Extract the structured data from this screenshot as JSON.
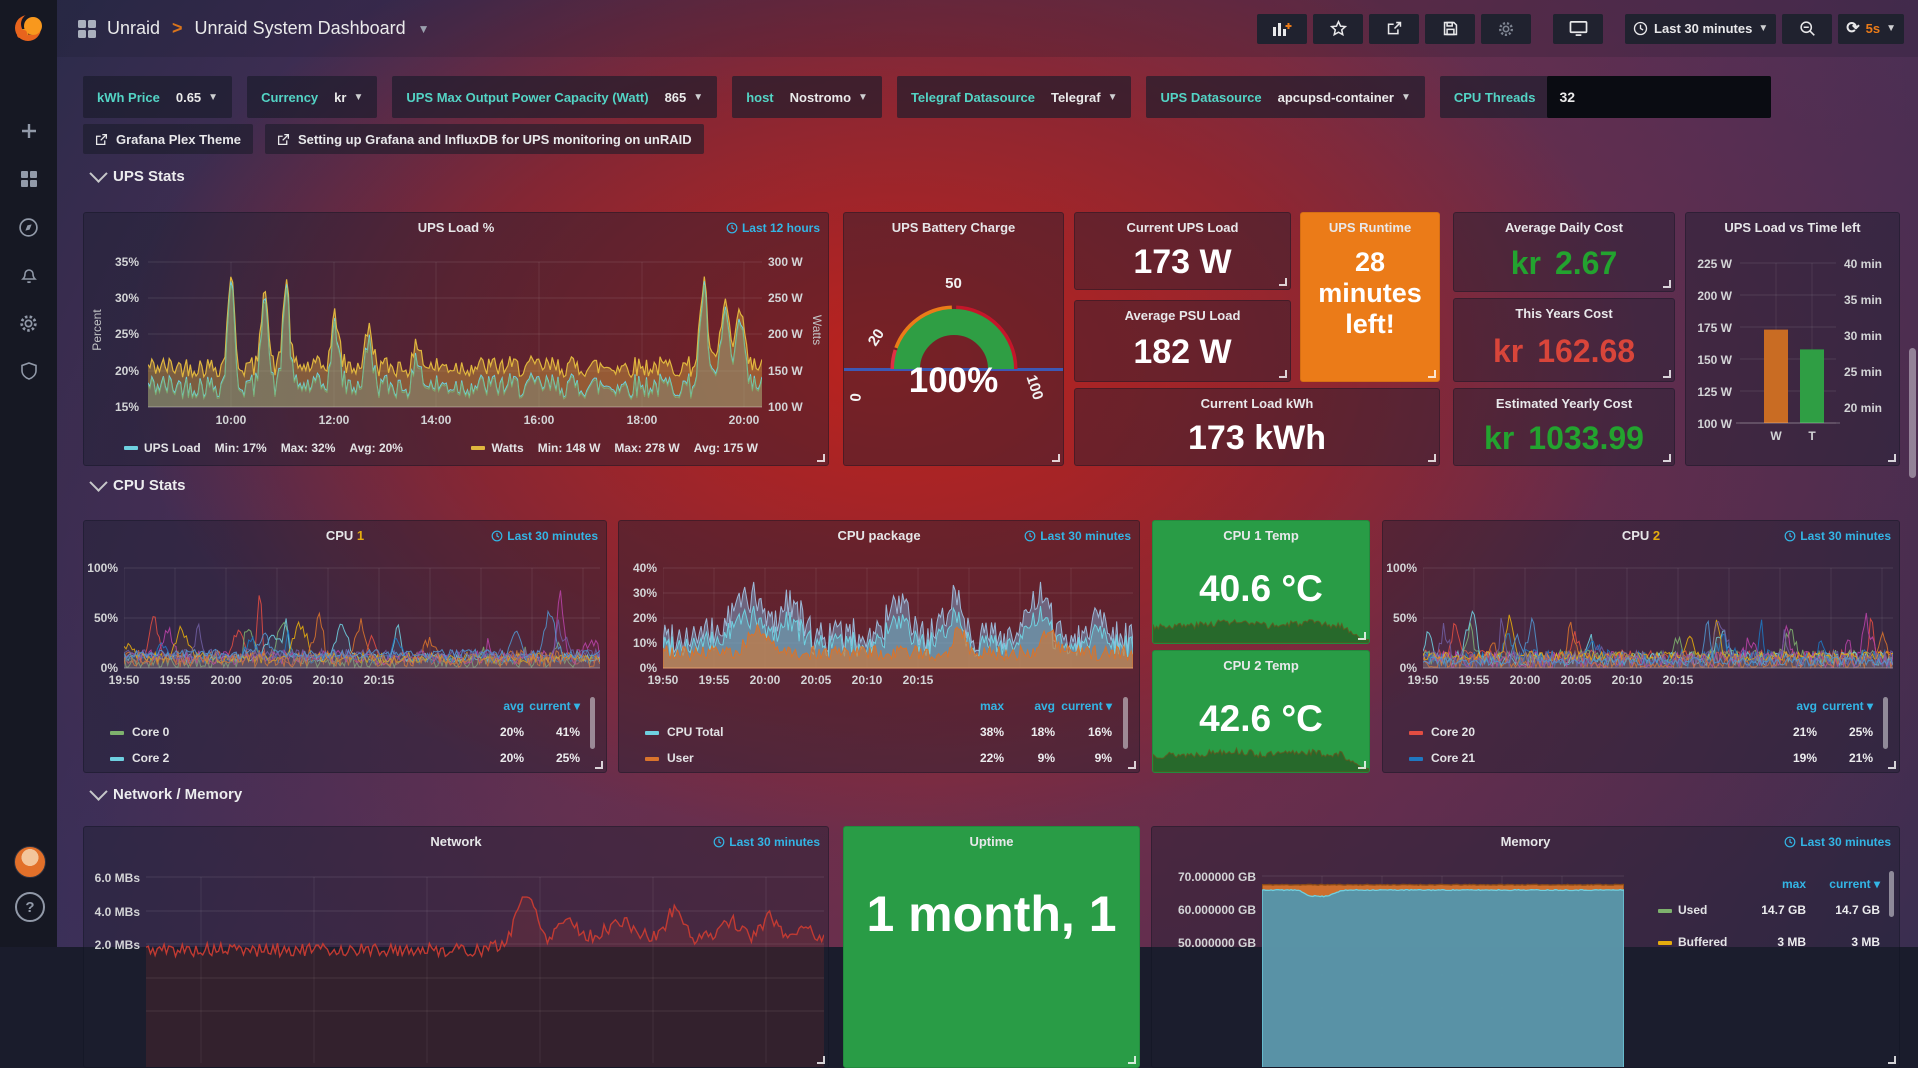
{
  "header": {
    "breadcrumb": [
      "Unraid",
      "Unraid System Dashboard"
    ],
    "time_range": "Last 30 minutes",
    "refresh_interval": "5s",
    "action_icons": [
      "add-panel",
      "star",
      "share",
      "save",
      "settings",
      "tv-kiosk",
      "time-picker",
      "zoom-out",
      "refresh"
    ]
  },
  "sidebar": {
    "icons": [
      "grafana-logo",
      "create-plus",
      "dashboards-grid",
      "explore-compass",
      "alerting-bell",
      "configuration-gear",
      "server-admin-shield",
      "user-avatar",
      "help-question"
    ]
  },
  "variables": [
    {
      "label": "kWh Price",
      "value": "0.65"
    },
    {
      "label": "Currency",
      "value": "kr"
    },
    {
      "label": "UPS Max Output Power Capacity (Watt)",
      "value": "865"
    },
    {
      "label": "host",
      "value": "Nostromo"
    },
    {
      "label": "Telegraf Datasource",
      "value": "Telegraf"
    },
    {
      "label": "UPS Datasource",
      "value": "apcupsd-container"
    },
    {
      "label": "CPU Threads",
      "value": "32"
    }
  ],
  "links": [
    {
      "label": "Grafana Plex Theme"
    },
    {
      "label": "Setting up Grafana and InfluxDB for UPS monitoring on unRAID"
    }
  ],
  "sections": {
    "ups": "UPS Stats",
    "cpu": "CPU Stats",
    "network": "Network / Memory"
  },
  "panels": {
    "ups_load": {
      "title": "UPS Load %",
      "timerange": "Last 12 hours",
      "y_left": {
        "label": "Percent",
        "ticks": [
          "35%",
          "30%",
          "25%",
          "20%",
          "15%"
        ]
      },
      "y_right": {
        "label": "Watts",
        "ticks": [
          "300 W",
          "250 W",
          "200 W",
          "150 W",
          "100 W"
        ]
      },
      "x_ticks": [
        "10:00",
        "12:00",
        "14:00",
        "16:00",
        "18:00",
        "20:00"
      ],
      "series": [
        {
          "name": "UPS Load",
          "color": "#6ed0e0",
          "stats": [
            "Min: 17%",
            "Max: 32%",
            "Avg: 20%"
          ]
        },
        {
          "name": "Watts",
          "color": "#e0b63e",
          "stats": [
            "Min: 148 W",
            "Max: 278 W",
            "Avg: 175 W"
          ]
        }
      ]
    },
    "battery": {
      "title": "UPS Battery Charge",
      "value": "100%",
      "ticks": [
        "0",
        "20",
        "50",
        "100"
      ],
      "threshold_colors": [
        "#e02f44",
        "#eb7b18",
        "#c4162a"
      ],
      "value_color": "#2f9e44"
    },
    "current_ups_load": {
      "title": "Current UPS Load",
      "value": "173 W"
    },
    "average_psu_load": {
      "title": "Average PSU Load",
      "value": "182 W"
    },
    "ups_runtime": {
      "title": "UPS Runtime",
      "value": "28 minutes left!",
      "bg": "#eb7b18"
    },
    "average_daily_cost": {
      "title": "Average Daily Cost",
      "prefix": "kr",
      "value": "2.67",
      "color": "#23a32f"
    },
    "this_years_cost": {
      "title": "This Years Cost",
      "prefix": "kr",
      "value": "162.68",
      "color": "#d9453a"
    },
    "current_load_kwh": {
      "title": "Current Load kWh",
      "value": "173 kWh"
    },
    "estimated_yearly_cost": {
      "title": "Estimated Yearly Cost",
      "prefix": "kr",
      "value": "1033.99",
      "color": "#23a32f"
    },
    "load_vs_time": {
      "title": "UPS Load vs Time left",
      "y_left": [
        "225 W",
        "200 W",
        "175 W",
        "150 W",
        "125 W",
        "100 W"
      ],
      "y_right": [
        "40 min",
        "35 min",
        "30 min",
        "25 min",
        "20 min"
      ],
      "bars": [
        {
          "label": "W",
          "watts": 173,
          "color": "#c96c23"
        },
        {
          "label": "T",
          "minutes": 28,
          "color": "#2f9e44"
        }
      ]
    },
    "cpu1": {
      "title": "CPU ",
      "title_accent": "1",
      "timerange": "Last 30 minutes",
      "y_ticks": [
        "100%",
        "50%",
        "0%"
      ],
      "x_ticks": [
        "19:50",
        "19:55",
        "20:00",
        "20:05",
        "20:10",
        "20:15"
      ],
      "legend": {
        "headers": [
          "avg",
          "current"
        ],
        "rows": [
          {
            "name": "Core 0",
            "color": "#7eb26d",
            "values": [
              "20%",
              "41%"
            ]
          },
          {
            "name": "Core 2",
            "color": "#6ed0e0",
            "values": [
              "20%",
              "25%"
            ]
          }
        ]
      }
    },
    "cpu_package": {
      "title": "CPU package",
      "timerange": "Last 30 minutes",
      "y_ticks": [
        "40%",
        "30%",
        "20%",
        "10%",
        "0%"
      ],
      "x_ticks": [
        "19:50",
        "19:55",
        "20:00",
        "20:05",
        "20:10",
        "20:15"
      ],
      "legend": {
        "headers": [
          "max",
          "avg",
          "current"
        ],
        "rows": [
          {
            "name": "CPU Total",
            "color": "#6ed0e0",
            "values": [
              "38%",
              "18%",
              "16%"
            ]
          },
          {
            "name": "User",
            "color": "#d9742c",
            "values": [
              "22%",
              "9%",
              "9%"
            ]
          }
        ]
      }
    },
    "cpu1_temp": {
      "title": "CPU 1 Temp",
      "value": "40.6 °C",
      "bg": "#299c46"
    },
    "cpu2_temp": {
      "title": "CPU 2 Temp",
      "value": "42.6 °C",
      "bg": "#299c46"
    },
    "cpu2": {
      "title": "CPU ",
      "title_accent": "2",
      "timerange": "Last 30 minutes",
      "y_ticks": [
        "100%",
        "50%",
        "0%"
      ],
      "x_ticks": [
        "19:50",
        "19:55",
        "20:00",
        "20:05",
        "20:10",
        "20:15"
      ],
      "legend": {
        "headers": [
          "avg",
          "current"
        ],
        "rows": [
          {
            "name": "Core 20",
            "color": "#e24d42",
            "values": [
              "21%",
              "25%"
            ]
          },
          {
            "name": "Core 21",
            "color": "#1f78c1",
            "values": [
              "19%",
              "21%"
            ]
          }
        ]
      }
    },
    "network": {
      "title": "Network",
      "timerange": "Last 30 minutes",
      "y_ticks": [
        "6.0 MBs",
        "4.0 MBs",
        "2.0 MBs"
      ],
      "series_color": "#c23a32"
    },
    "uptime": {
      "title": "Uptime",
      "value": "1 month, 1",
      "bg": "#299c46"
    },
    "memory": {
      "title": "Memory",
      "timerange": "Last 30 minutes",
      "y_ticks": [
        "70.000000 GB",
        "60.000000 GB",
        "50.000000 GB"
      ],
      "legend": {
        "headers": [
          "max",
          "current"
        ],
        "rows": [
          {
            "name": "Used",
            "color": "#7eb26d",
            "values": [
              "14.7 GB",
              "14.7 GB"
            ]
          },
          {
            "name": "Buffered",
            "color": "#e5ac0e",
            "values": [
              "3 MB",
              "3 MB"
            ]
          }
        ]
      }
    }
  }
}
